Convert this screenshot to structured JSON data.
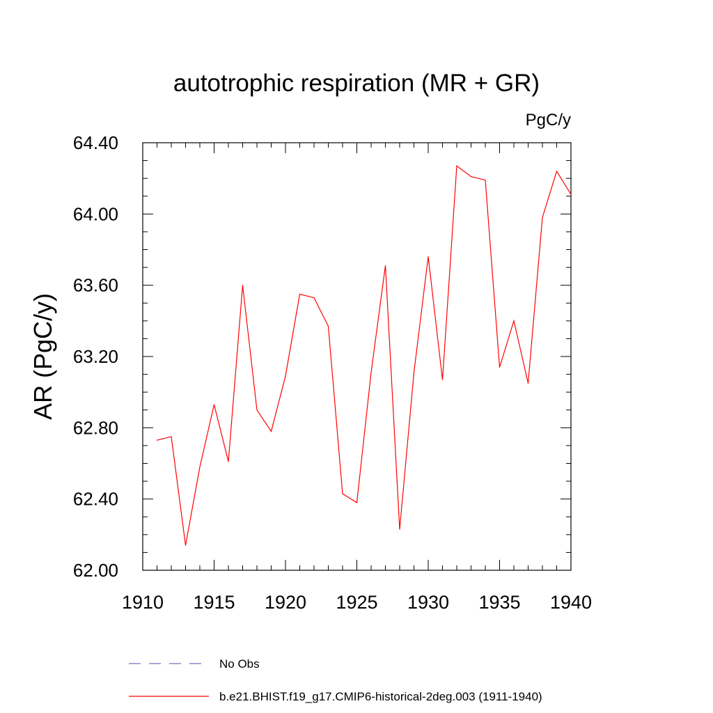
{
  "chart_data": {
    "type": "line",
    "title": "autotrophic respiration (MR + GR)",
    "units": "PgC/y",
    "ylabel": "AR  (PgC/y)",
    "xlabel": "",
    "xlim": [
      1910,
      1940
    ],
    "ylim": [
      62.0,
      64.4
    ],
    "x_ticks": [
      1910,
      1915,
      1920,
      1925,
      1930,
      1935,
      1940
    ],
    "y_ticks": [
      "62.00",
      "62.40",
      "62.80",
      "63.20",
      "63.60",
      "64.00",
      "64.40"
    ],
    "grid": false,
    "legend_position": "bottom",
    "series": [
      {
        "name": "b.e21.BHIST.f19_g17.CMIP6-historical-2deg.003 (1911-1940)",
        "color": "#ff0000",
        "style": "solid",
        "x": [
          1911,
          1912,
          1913,
          1914,
          1915,
          1916,
          1917,
          1918,
          1919,
          1920,
          1921,
          1922,
          1923,
          1924,
          1925,
          1926,
          1927,
          1928,
          1929,
          1930,
          1931,
          1932,
          1933,
          1934,
          1935,
          1936,
          1937,
          1938,
          1939,
          1940
        ],
        "y": [
          62.73,
          62.75,
          62.14,
          62.58,
          62.93,
          62.61,
          63.6,
          62.9,
          62.78,
          63.09,
          63.55,
          63.53,
          63.37,
          62.43,
          62.38,
          63.11,
          63.71,
          62.23,
          63.11,
          63.76,
          63.07,
          64.27,
          64.21,
          64.19,
          63.14,
          63.4,
          63.05,
          63.98,
          64.24,
          64.11
        ]
      },
      {
        "name": "No Obs",
        "color": "#7070c0",
        "style": "dashed",
        "x": [],
        "y": []
      }
    ]
  }
}
